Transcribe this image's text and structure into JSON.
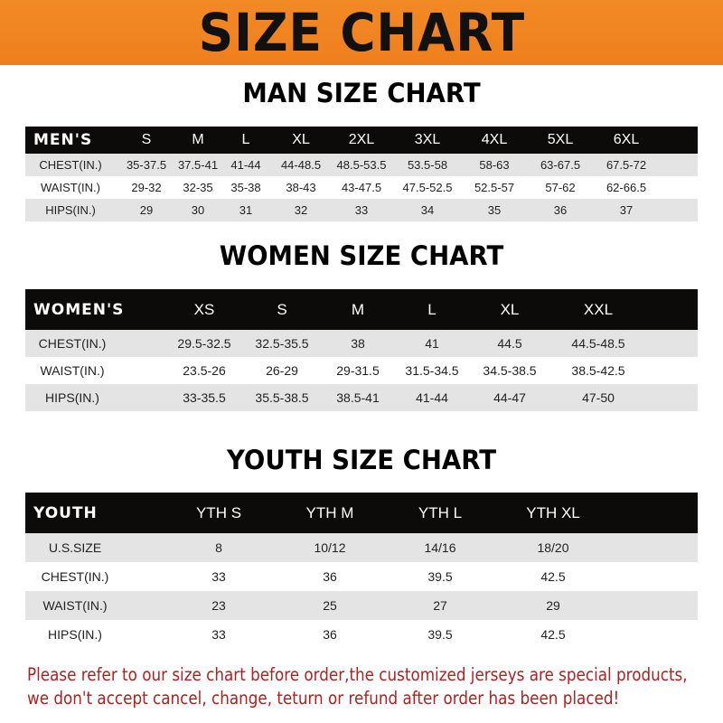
{
  "banner": {
    "title": "SIZE CHART",
    "color": "#F08A25"
  },
  "men": {
    "title": "MAN SIZE CHART",
    "header": [
      "MEN'S",
      "S",
      "M",
      "L",
      "XL",
      "2XL",
      "3XL",
      "4XL",
      "5XL",
      "6XL"
    ],
    "rows": [
      [
        "CHEST(IN.)",
        "35-37.5",
        "37.5-41",
        "41-44",
        "44-48.5",
        "48.5-53.5",
        "53.5-58",
        "58-63",
        "63-67.5",
        "67.5-72"
      ],
      [
        "WAIST(IN.)",
        "29-32",
        "32-35",
        "35-38",
        "38-43",
        "43-47.5",
        "47.5-52.5",
        "52.5-57",
        "57-62",
        "62-66.5"
      ],
      [
        "HIPS(IN.)",
        "29",
        "30",
        "31",
        "32",
        "33",
        "34",
        "35",
        "36",
        "37"
      ]
    ]
  },
  "women": {
    "title": "WOMEN SIZE CHART",
    "header": [
      "WOMEN'S",
      "XS",
      "S",
      "M",
      "L",
      "XL",
      "XXL"
    ],
    "rows": [
      [
        "CHEST(IN.)",
        "29.5-32.5",
        "32.5-35.5",
        "38",
        "41",
        "44.5",
        "44.5-48.5"
      ],
      [
        "WAIST(IN.)",
        "23.5-26",
        "26-29",
        "29-31.5",
        "31.5-34.5",
        "34.5-38.5",
        "38.5-42.5"
      ],
      [
        "HIPS(IN.)",
        "33-35.5",
        "35.5-38.5",
        "38.5-41",
        "41-44",
        "44-47",
        "47-50"
      ]
    ]
  },
  "youth": {
    "title": "YOUTH SIZE CHART",
    "header": [
      "YOUTH",
      "YTH S",
      "YTH M",
      "YTH L",
      "YTH XL"
    ],
    "rows": [
      [
        "U.S.SIZE",
        "8",
        "10/12",
        "14/16",
        "18/20"
      ],
      [
        "CHEST(IN.)",
        "33",
        "36",
        "39.5",
        "42.5"
      ],
      [
        "WAIST(IN.)",
        "23",
        "25",
        "27",
        "29"
      ],
      [
        "HIPS(IN.)",
        "33",
        "36",
        "39.5",
        "42.5"
      ]
    ]
  },
  "notice": {
    "line1": "Please refer to our size chart before order,the customized jerseys are special products,",
    "line2": "we don't accept cancel, change, teturn or refund after order has been placed!",
    "color": "#B31E1E"
  }
}
